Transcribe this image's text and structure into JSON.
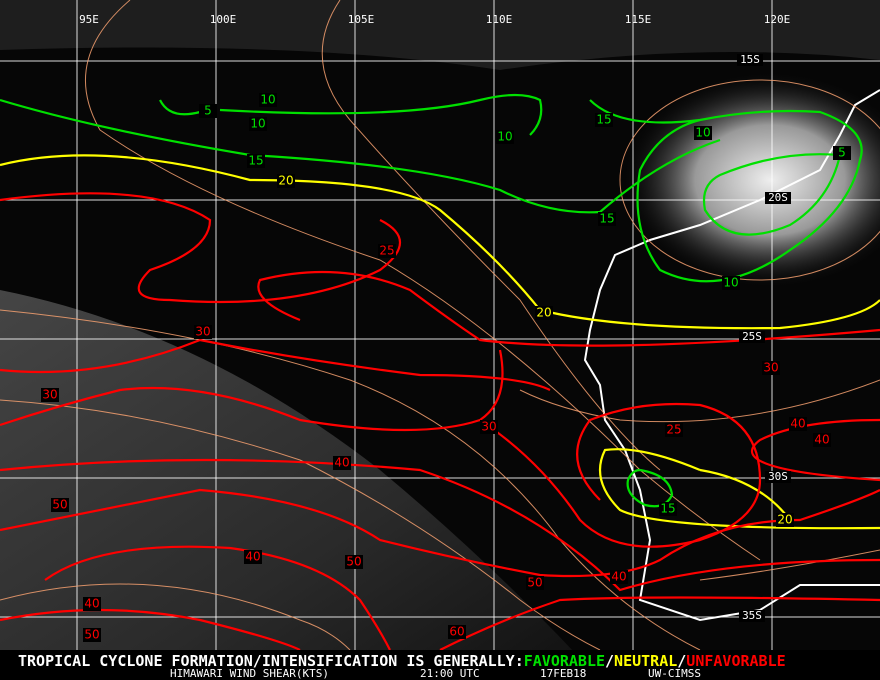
{
  "map": {
    "longitude_labels": [
      "95E",
      "100E",
      "105E",
      "110E",
      "115E",
      "120E"
    ],
    "latitude_labels": [
      "15S",
      "20S",
      "25S",
      "30S",
      "35S"
    ],
    "contour_labels": [
      {
        "text": "5",
        "color": "#00e000"
      },
      {
        "text": "10",
        "color": "#00e000"
      },
      {
        "text": "10",
        "color": "#00e000"
      },
      {
        "text": "15",
        "color": "#00e000"
      },
      {
        "text": "10",
        "color": "#00e000"
      },
      {
        "text": "15",
        "color": "#00e000"
      },
      {
        "text": "10",
        "color": "#00e000"
      },
      {
        "text": "5",
        "color": "#00e000"
      },
      {
        "text": "15",
        "color": "#00e000"
      },
      {
        "text": "10",
        "color": "#00e000"
      },
      {
        "text": "15",
        "color": "#00e000"
      },
      {
        "text": "20",
        "color": "#ffff00"
      },
      {
        "text": "20",
        "color": "#ffff00"
      },
      {
        "text": "20",
        "color": "#ffff00"
      },
      {
        "text": "25",
        "color": "#ff0000"
      },
      {
        "text": "30",
        "color": "#ff0000"
      },
      {
        "text": "30",
        "color": "#ff0000"
      },
      {
        "text": "30",
        "color": "#ff0000"
      },
      {
        "text": "25",
        "color": "#ff0000"
      },
      {
        "text": "30",
        "color": "#ff0000"
      },
      {
        "text": "40",
        "color": "#ff0000"
      },
      {
        "text": "40",
        "color": "#ff0000"
      },
      {
        "text": "40",
        "color": "#ff0000"
      },
      {
        "text": "50",
        "color": "#ff0000"
      },
      {
        "text": "40",
        "color": "#ff0000"
      },
      {
        "text": "50",
        "color": "#ff0000"
      },
      {
        "text": "50",
        "color": "#ff0000"
      },
      {
        "text": "40",
        "color": "#ff0000"
      },
      {
        "text": "40",
        "color": "#ff0000"
      },
      {
        "text": "50",
        "color": "#ff0000"
      },
      {
        "text": "60",
        "color": "#ff0000"
      }
    ]
  },
  "footer": {
    "headline": "TROPICAL CYCLONE FORMATION/INTENSIFICATION IS GENERALLY:",
    "favorable": "FAVORABLE",
    "separator": "/",
    "neutral": "NEUTRAL",
    "unfavorable": "UNFAVORABLE",
    "product": "HIMAWARI WIND SHEAR(KTS)",
    "time": "21:00 UTC",
    "date": "17FEB18",
    "source": "UW-CIMSS"
  }
}
